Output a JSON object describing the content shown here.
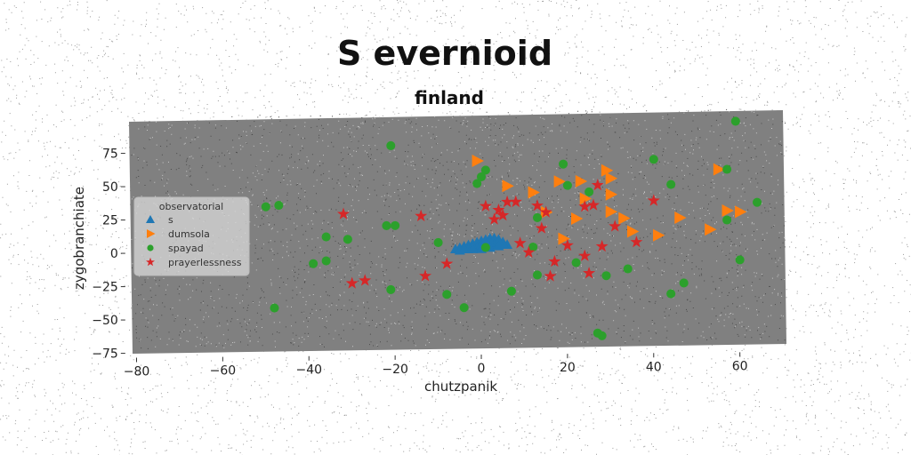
{
  "chart_data": {
    "type": "scatter",
    "title": "S evernioid",
    "subtitle": "finland",
    "xlabel": "chutzpanik",
    "ylabel": "zygobranchiate",
    "xlim": [
      -82,
      71
    ],
    "ylim": [
      -77,
      97
    ],
    "xticks": [
      "−80",
      "−60",
      "−40",
      "−20",
      "0",
      "20",
      "40",
      "60"
    ],
    "xtick_values": [
      -80,
      -60,
      -40,
      -20,
      0,
      20,
      40,
      60
    ],
    "yticks": [
      "−75",
      "−50",
      "−25",
      "0",
      "25",
      "50",
      "75"
    ],
    "ytick_values": [
      -75,
      -50,
      -25,
      0,
      25,
      50,
      75
    ],
    "grid": false,
    "legend": {
      "title": "observatorial",
      "placement": "left"
    },
    "series": [
      {
        "name": "s",
        "marker": "triangle-up",
        "color": "#1f77b4",
        "points": [
          [
            -6,
            1
          ],
          [
            -5,
            2
          ],
          [
            -4,
            3
          ],
          [
            -3,
            4
          ],
          [
            -2,
            5
          ],
          [
            -1,
            6
          ],
          [
            0,
            7
          ],
          [
            1,
            8
          ],
          [
            2,
            9
          ],
          [
            3,
            9
          ],
          [
            4,
            8
          ],
          [
            5,
            6
          ],
          [
            6,
            4
          ],
          [
            -5,
            0
          ],
          [
            -3,
            1
          ],
          [
            -1,
            2
          ],
          [
            1,
            3
          ],
          [
            3,
            4
          ],
          [
            5,
            5
          ],
          [
            -2,
            3
          ],
          [
            0,
            4
          ],
          [
            2,
            6
          ],
          [
            4,
            7
          ],
          [
            -4,
            1
          ],
          [
            2,
            2
          ],
          [
            0,
            1
          ],
          [
            -2,
            1
          ],
          [
            4,
            3
          ]
        ]
      },
      {
        "name": "dumsola",
        "marker": "triangle-right",
        "color": "#ff7f0e",
        "points": [
          [
            -1,
            67
          ],
          [
            6,
            48
          ],
          [
            12,
            43
          ],
          [
            18,
            51
          ],
          [
            29,
            59
          ],
          [
            30,
            53
          ],
          [
            23,
            51
          ],
          [
            30,
            41
          ],
          [
            24,
            38
          ],
          [
            22,
            23
          ],
          [
            30,
            28
          ],
          [
            33,
            23
          ],
          [
            35,
            13
          ],
          [
            19,
            8
          ],
          [
            41,
            10
          ],
          [
            46,
            23
          ],
          [
            53,
            14
          ],
          [
            55,
            59
          ],
          [
            57,
            28
          ],
          [
            60,
            27
          ],
          [
            15,
            28
          ]
        ]
      },
      {
        "name": "spayad",
        "marker": "circle",
        "color": "#2ca02c",
        "points": [
          [
            59,
            95
          ],
          [
            -21,
            79
          ],
          [
            1,
            60
          ],
          [
            19,
            64
          ],
          [
            40,
            67
          ],
          [
            0,
            55
          ],
          [
            -1,
            50
          ],
          [
            20,
            48
          ],
          [
            25,
            43
          ],
          [
            44,
            48
          ],
          [
            57,
            59
          ],
          [
            64,
            34
          ],
          [
            -50,
            34
          ],
          [
            -47,
            35
          ],
          [
            -22,
            19
          ],
          [
            -20,
            19
          ],
          [
            -36,
            11
          ],
          [
            -31,
            9
          ],
          [
            -10,
            6
          ],
          [
            -36,
            -7
          ],
          [
            -39,
            -9
          ],
          [
            12,
            2
          ],
          [
            13,
            24
          ],
          [
            44,
            -34
          ],
          [
            47,
            -26
          ],
          [
            34,
            -15
          ],
          [
            13,
            -19
          ],
          [
            -8,
            -33
          ],
          [
            -21,
            -29
          ],
          [
            -48,
            -42
          ],
          [
            -4,
            -43
          ],
          [
            7,
            -31
          ],
          [
            27,
            -63
          ],
          [
            28,
            -65
          ],
          [
            57,
            21
          ],
          [
            60,
            -9
          ],
          [
            1,
            2
          ],
          [
            22,
            -10
          ],
          [
            29,
            -20
          ]
        ]
      },
      {
        "name": "prayerlessness",
        "marker": "star",
        "color": "#d62728",
        "points": [
          [
            -32,
            28
          ],
          [
            -14,
            26
          ],
          [
            1,
            33
          ],
          [
            4,
            30
          ],
          [
            6,
            36
          ],
          [
            3,
            23
          ],
          [
            5,
            26
          ],
          [
            8,
            36
          ],
          [
            13,
            33
          ],
          [
            15,
            28
          ],
          [
            9,
            5
          ],
          [
            11,
            -2
          ],
          [
            14,
            16
          ],
          [
            20,
            3
          ],
          [
            24,
            32
          ],
          [
            27,
            48
          ],
          [
            26,
            33
          ],
          [
            31,
            17
          ],
          [
            24,
            -5
          ],
          [
            28,
            2
          ],
          [
            36,
            5
          ],
          [
            40,
            36
          ],
          [
            -8,
            -10
          ],
          [
            -13,
            -19
          ],
          [
            -27,
            -22
          ],
          [
            -30,
            -24
          ],
          [
            17,
            -9
          ],
          [
            16,
            -20
          ],
          [
            25,
            -18
          ]
        ]
      }
    ]
  }
}
